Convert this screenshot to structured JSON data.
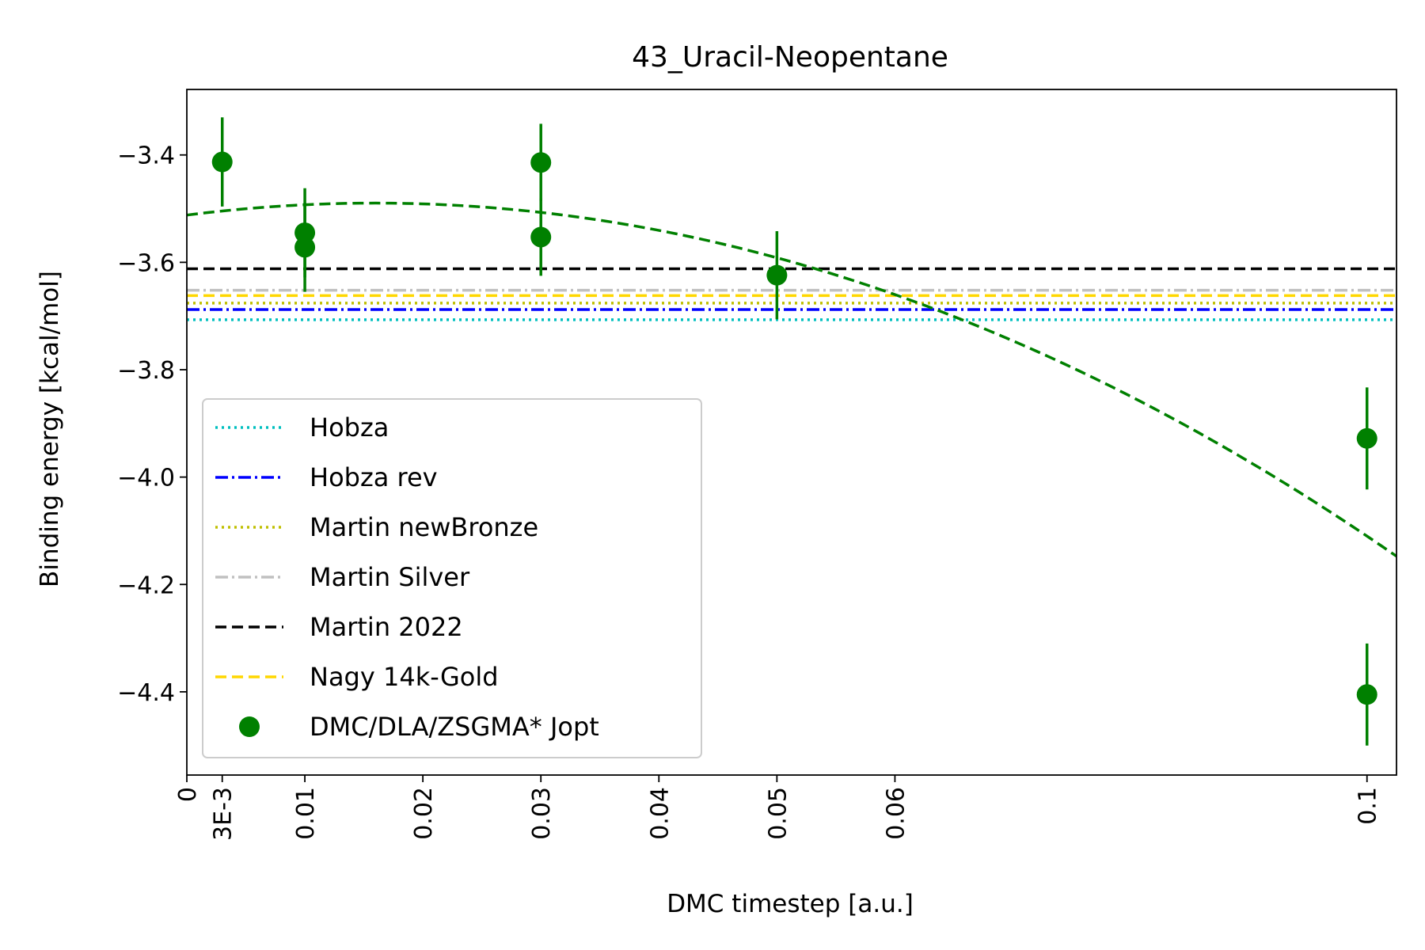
{
  "chart_data": {
    "type": "scatter",
    "title": "43_Uracil-Neopentane",
    "xlabel": "DMC timestep [a.u.]",
    "ylabel": "Binding energy [kcal/mol]",
    "xlim": [
      0,
      0.1025
    ],
    "ylim": [
      -4.555,
      -3.278
    ],
    "x_ticks": [
      {
        "value": 0,
        "label": "0"
      },
      {
        "value": 0.003,
        "label": "3E-3"
      },
      {
        "value": 0.01,
        "label": "0.01"
      },
      {
        "value": 0.02,
        "label": "0.02"
      },
      {
        "value": 0.03,
        "label": "0.03"
      },
      {
        "value": 0.04,
        "label": "0.04"
      },
      {
        "value": 0.05,
        "label": "0.05"
      },
      {
        "value": 0.06,
        "label": "0.06"
      },
      {
        "value": 0.1,
        "label": "0.1"
      }
    ],
    "y_ticks": [
      {
        "value": -3.4,
        "label": "−3.4"
      },
      {
        "value": -3.6,
        "label": "−3.6"
      },
      {
        "value": -3.8,
        "label": "−3.8"
      },
      {
        "value": -4.0,
        "label": "−4.0"
      },
      {
        "value": -4.2,
        "label": "−4.2"
      },
      {
        "value": -4.4,
        "label": "−4.4"
      }
    ],
    "reference_lines": [
      {
        "name": "Hobza",
        "y": -3.707,
        "color": "#00bfbf",
        "style": "dotted"
      },
      {
        "name": "Hobza rev",
        "y": -3.688,
        "color": "#0000ff",
        "style": "dashdot"
      },
      {
        "name": "Martin newBronze",
        "y": -3.676,
        "color": "#bfbf00",
        "style": "dotted"
      },
      {
        "name": "Martin Silver",
        "y": -3.652,
        "color": "#c0c0c0",
        "style": "dashdot"
      },
      {
        "name": "Martin 2022",
        "y": -3.612,
        "color": "#000000",
        "style": "dashed"
      },
      {
        "name": "Nagy 14k-Gold",
        "y": -3.662,
        "color": "#ffd700",
        "style": "dashed"
      }
    ],
    "series": [
      {
        "name": "DMC/DLA/ZSGMA* Jopt",
        "color": "#008000",
        "points": [
          {
            "x": 0.003,
            "y": -3.413,
            "err": 0.083
          },
          {
            "x": 0.01,
            "y": -3.545,
            "err": 0.083
          },
          {
            "x": 0.01,
            "y": -3.572,
            "err": 0.083
          },
          {
            "x": 0.03,
            "y": -3.414,
            "err": 0.072
          },
          {
            "x": 0.03,
            "y": -3.553,
            "err": 0.072
          },
          {
            "x": 0.05,
            "y": -3.624,
            "err": 0.082
          },
          {
            "x": 0.1,
            "y": -3.928,
            "err": 0.095
          },
          {
            "x": 0.1,
            "y": -4.405,
            "err": 0.095
          }
        ]
      }
    ],
    "fit_curve": {
      "style": "dashed",
      "color": "#008000",
      "coefficients": [
        -3.512,
        2.8,
        -87.8
      ]
    },
    "legend": {
      "position": "lower-left",
      "entries": [
        "Hobza",
        "Hobza rev",
        "Martin newBronze",
        "Martin Silver",
        "Martin 2022",
        "Nagy 14k-Gold",
        "DMC/DLA/ZSGMA* Jopt"
      ]
    },
    "grid": false
  }
}
